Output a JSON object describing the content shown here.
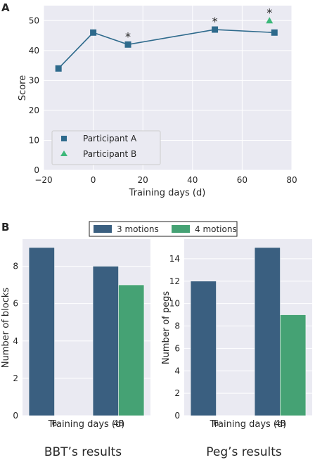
{
  "panel_labels": {
    "a": "A",
    "b": "B"
  },
  "colors": {
    "bg": "#eaeaf2",
    "grid": "#ffffff",
    "participant_a": "#2e6a8c",
    "participant_b": "#3cb87a",
    "bar_3": "#3a5f80",
    "bar_4": "#45a274",
    "text": "#262626"
  },
  "chart_data": [
    {
      "type": "scatter",
      "xlabel": "Training days (d)",
      "ylabel": "Score",
      "xlim": [
        -20,
        80
      ],
      "ylim": [
        0,
        55
      ],
      "xticks": [
        -20,
        0,
        20,
        40,
        60,
        80
      ],
      "yticks": [
        0,
        10,
        20,
        30,
        40,
        50
      ],
      "grid": true,
      "legend_position": "bottom-left",
      "series": [
        {
          "name": "Participant A",
          "marker": "square",
          "connected": true,
          "x": [
            -14,
            0,
            14,
            49,
            73
          ],
          "y": [
            34,
            46,
            42,
            47,
            46
          ]
        },
        {
          "name": "Participant B",
          "marker": "triangle",
          "connected": false,
          "x": [
            71
          ],
          "y": [
            50
          ]
        }
      ],
      "annotations": [
        {
          "text": "*",
          "x": 14,
          "y": 42
        },
        {
          "text": "*",
          "x": 49,
          "y": 47
        },
        {
          "text": "*",
          "x": 71,
          "y": 50
        }
      ]
    },
    {
      "type": "bar",
      "subtitle": "BBT’s results",
      "xlabel": "Training days (d)",
      "ylabel": "Number of blocks",
      "categories": [
        "6",
        "48"
      ],
      "ylim": [
        0,
        9.45
      ],
      "yticks": [
        0,
        2,
        4,
        6,
        8
      ],
      "grid": true,
      "series": [
        {
          "name": "3 motions",
          "values": [
            9,
            8
          ]
        },
        {
          "name": "4 motions",
          "values": [
            0,
            7
          ]
        }
      ]
    },
    {
      "type": "bar",
      "subtitle": "Peg’s results",
      "xlabel": "Training days (d)",
      "ylabel": "Number of pegs",
      "categories": [
        "6",
        "48"
      ],
      "ylim": [
        0,
        15.75
      ],
      "yticks": [
        0,
        2,
        4,
        6,
        8,
        10,
        12,
        14
      ],
      "grid": true,
      "series": [
        {
          "name": "3 motions",
          "values": [
            12,
            15
          ]
        },
        {
          "name": "4 motions",
          "values": [
            0,
            9
          ]
        }
      ]
    }
  ]
}
